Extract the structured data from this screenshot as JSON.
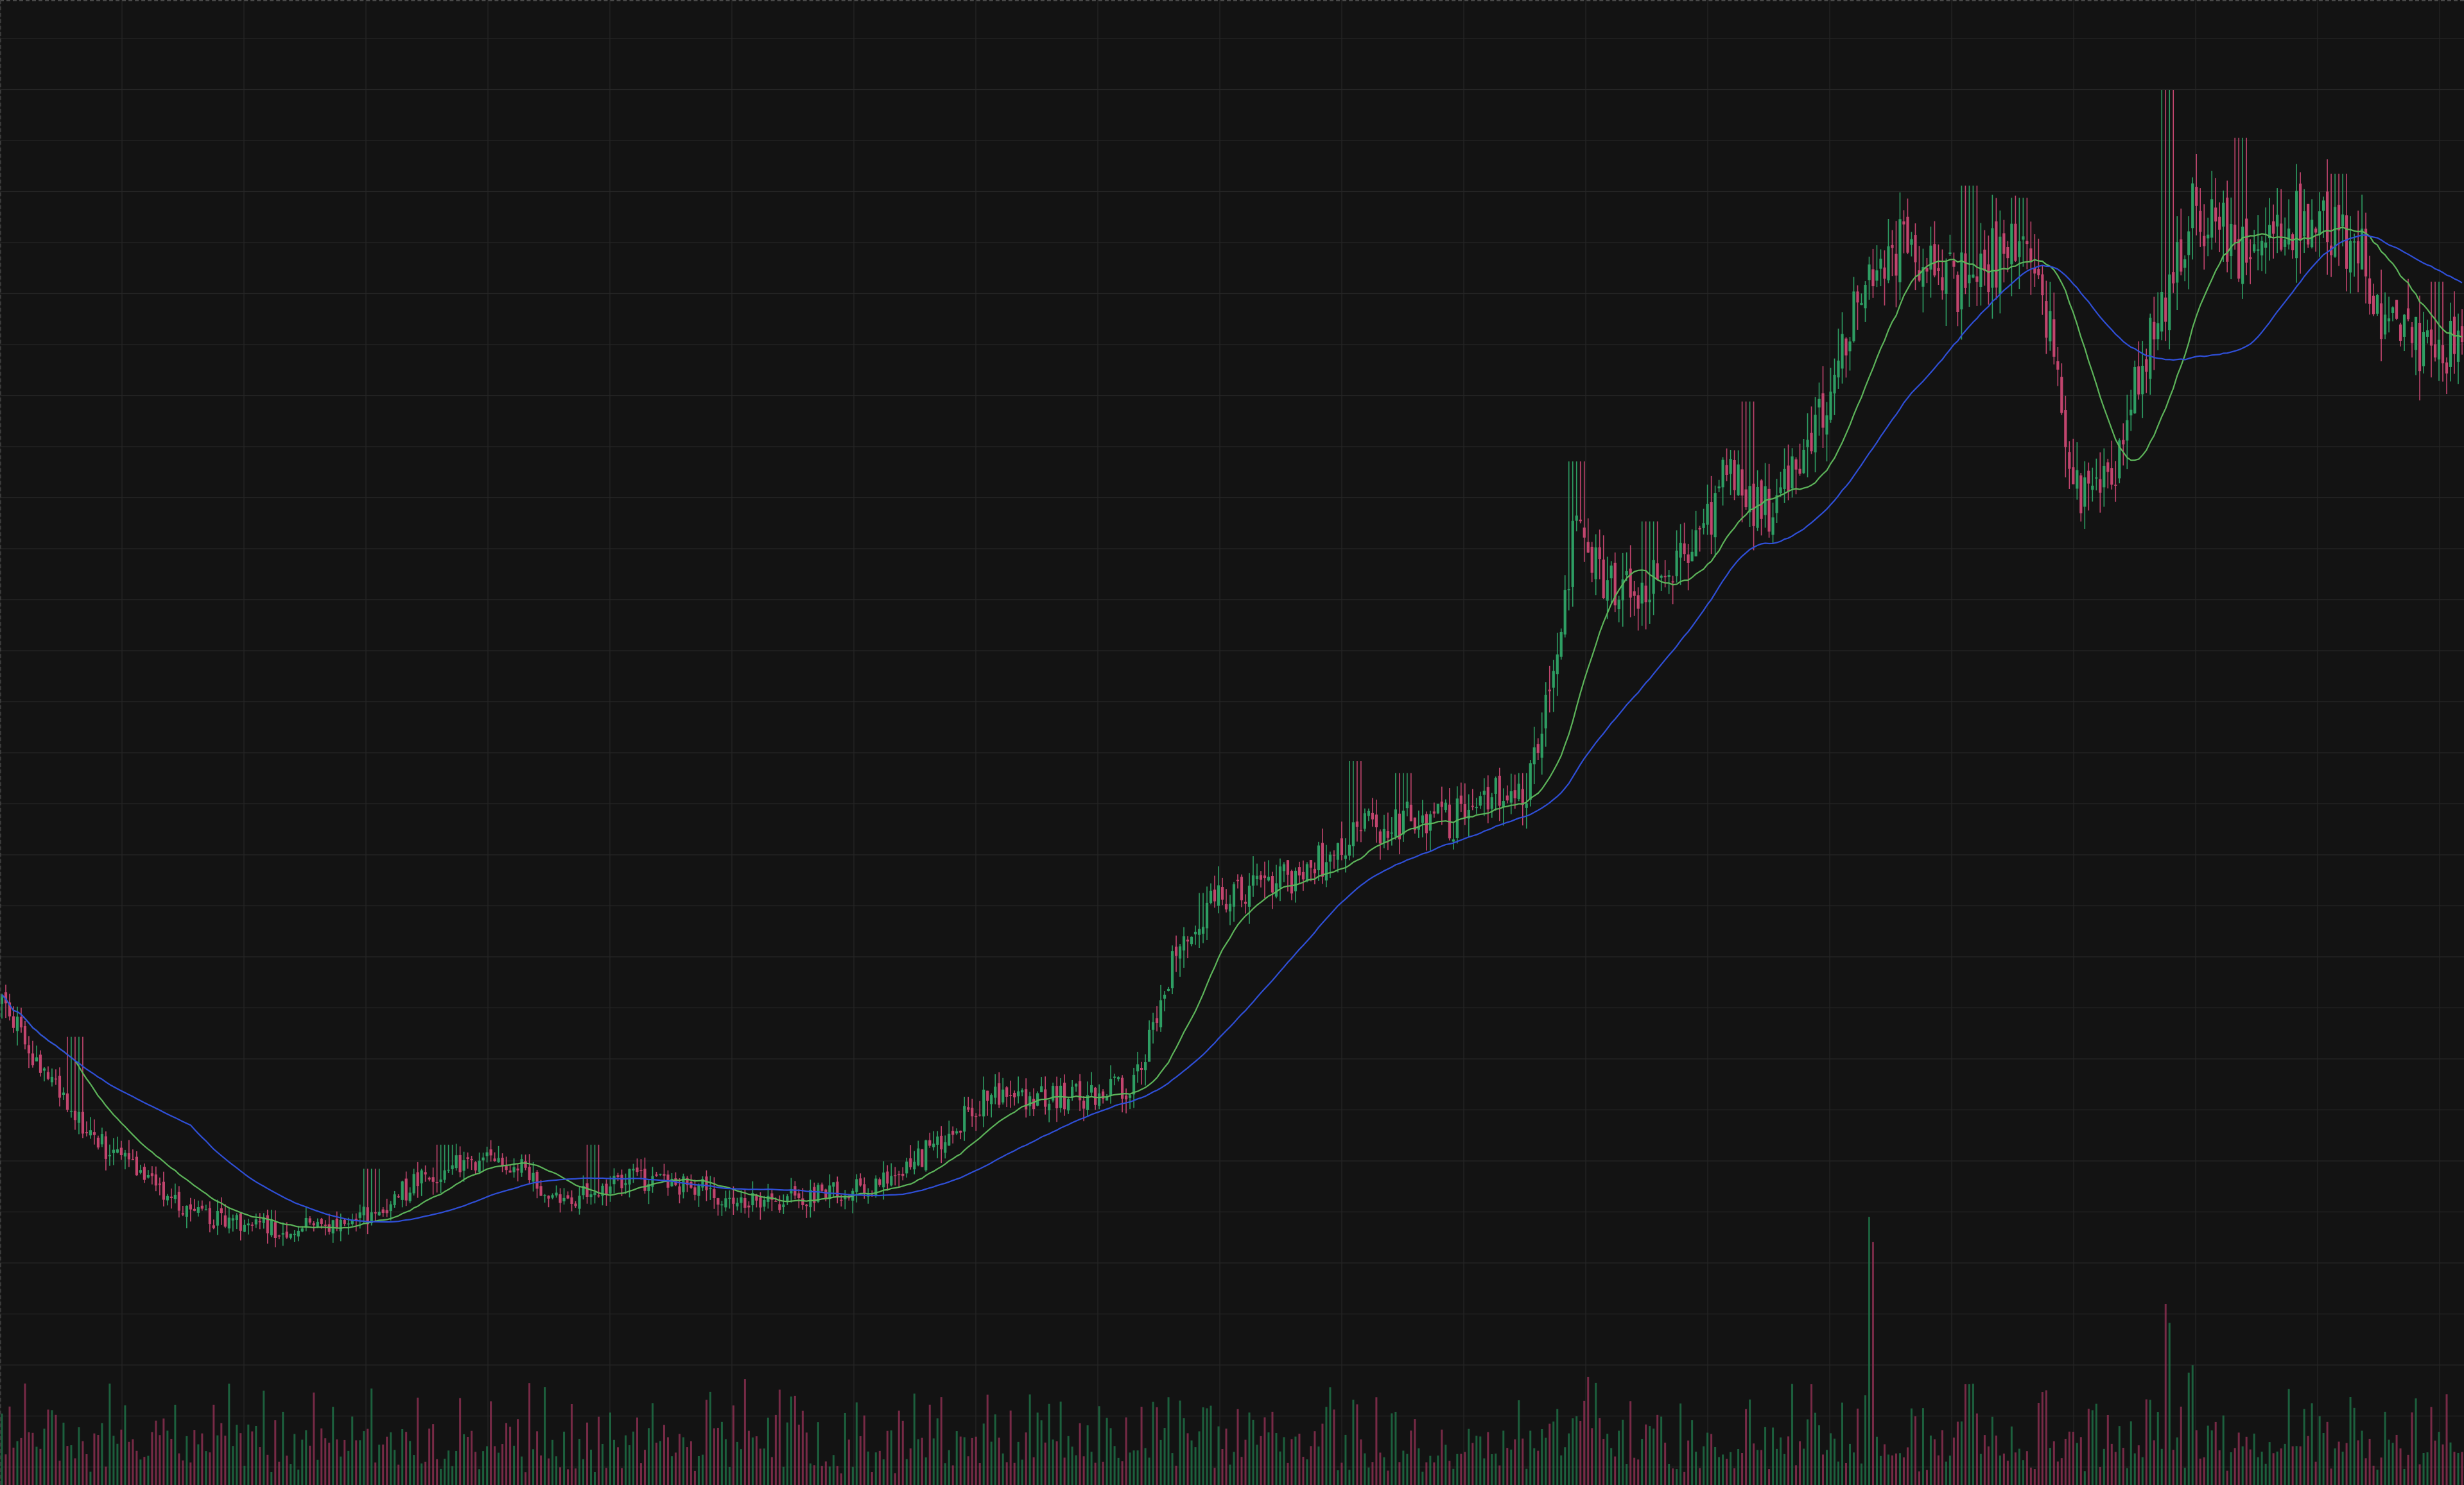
{
  "chart_data": {
    "type": "candlestick",
    "title": "",
    "xlabel": "",
    "ylabel": "",
    "grid": true,
    "legend": "none",
    "price_range": [
      0,
      100
    ],
    "volume_range": [
      0,
      100
    ],
    "candles_per_day": 1,
    "colors": {
      "background": "#131313",
      "grid": "#262626",
      "up": "#2e9e63",
      "down": "#c2456e",
      "ma_fast": "#5db55a",
      "ma_slow": "#2f4fd8"
    },
    "trend": [
      [
        0,
        30
      ],
      [
        2,
        23
      ],
      [
        4,
        18
      ],
      [
        6,
        15
      ],
      [
        8,
        12
      ],
      [
        11,
        11
      ],
      [
        14,
        11
      ],
      [
        17,
        15
      ],
      [
        19,
        17
      ],
      [
        21,
        16
      ],
      [
        23,
        13
      ],
      [
        25,
        15
      ],
      [
        27,
        15
      ],
      [
        29,
        14
      ],
      [
        31,
        13
      ],
      [
        34,
        14
      ],
      [
        36,
        15
      ],
      [
        38,
        18
      ],
      [
        40,
        22
      ],
      [
        42,
        22
      ],
      [
        44,
        22
      ],
      [
        46,
        23
      ],
      [
        48,
        36
      ],
      [
        50,
        39
      ],
      [
        52,
        40
      ],
      [
        54,
        42
      ],
      [
        55,
        44
      ],
      [
        57,
        45
      ],
      [
        59,
        45
      ],
      [
        60,
        47
      ],
      [
        62,
        48
      ],
      [
        63,
        58
      ],
      [
        64,
        70
      ],
      [
        65,
        65
      ],
      [
        66,
        64
      ],
      [
        67,
        65
      ],
      [
        68,
        66
      ],
      [
        69,
        68
      ],
      [
        70,
        74
      ],
      [
        71,
        72
      ],
      [
        72,
        71
      ],
      [
        73,
        74
      ],
      [
        74,
        80
      ],
      [
        75,
        85
      ],
      [
        76,
        91
      ],
      [
        77,
        93
      ],
      [
        78,
        91
      ],
      [
        79,
        90
      ],
      [
        80,
        90
      ],
      [
        81,
        92
      ],
      [
        82,
        93
      ],
      [
        83,
        89
      ],
      [
        84,
        74
      ],
      [
        85,
        71
      ],
      [
        86,
        75
      ],
      [
        87,
        84
      ],
      [
        88,
        89
      ],
      [
        89,
        96
      ],
      [
        90,
        95
      ],
      [
        91,
        92
      ],
      [
        92,
        93
      ],
      [
        93,
        95
      ],
      [
        94,
        96
      ],
      [
        95,
        94
      ],
      [
        96,
        92
      ],
      [
        97,
        86
      ],
      [
        98,
        85
      ],
      [
        99,
        83
      ],
      [
        100,
        86
      ]
    ],
    "spikes": [
      [
        0,
        30
      ],
      [
        3,
        27
      ],
      [
        15,
        16
      ],
      [
        18,
        18
      ],
      [
        24,
        18
      ],
      [
        49,
        39
      ],
      [
        53,
        41
      ],
      [
        55,
        50
      ],
      [
        57,
        49
      ],
      [
        62,
        49
      ],
      [
        64,
        75
      ],
      [
        67,
        70
      ],
      [
        71,
        80
      ],
      [
        77,
        94
      ],
      [
        80,
        98
      ],
      [
        82,
        97
      ],
      [
        88,
        106
      ],
      [
        91,
        102
      ],
      [
        95,
        99
      ],
      [
        99,
        90
      ]
    ],
    "ma_fast_period": 20,
    "ma_slow_period": 50,
    "volume_spikes": [
      [
        2,
        28
      ],
      [
        4,
        18
      ],
      [
        19,
        20
      ],
      [
        29,
        22
      ],
      [
        37,
        15
      ],
      [
        47,
        17
      ],
      [
        49,
        30
      ],
      [
        55,
        32
      ],
      [
        63,
        24
      ],
      [
        64,
        27
      ],
      [
        67,
        22
      ],
      [
        76,
        100
      ],
      [
        80,
        40
      ],
      [
        83,
        38
      ],
      [
        85,
        30
      ],
      [
        88,
        68
      ],
      [
        89,
        45
      ],
      [
        99,
        15
      ]
    ]
  }
}
